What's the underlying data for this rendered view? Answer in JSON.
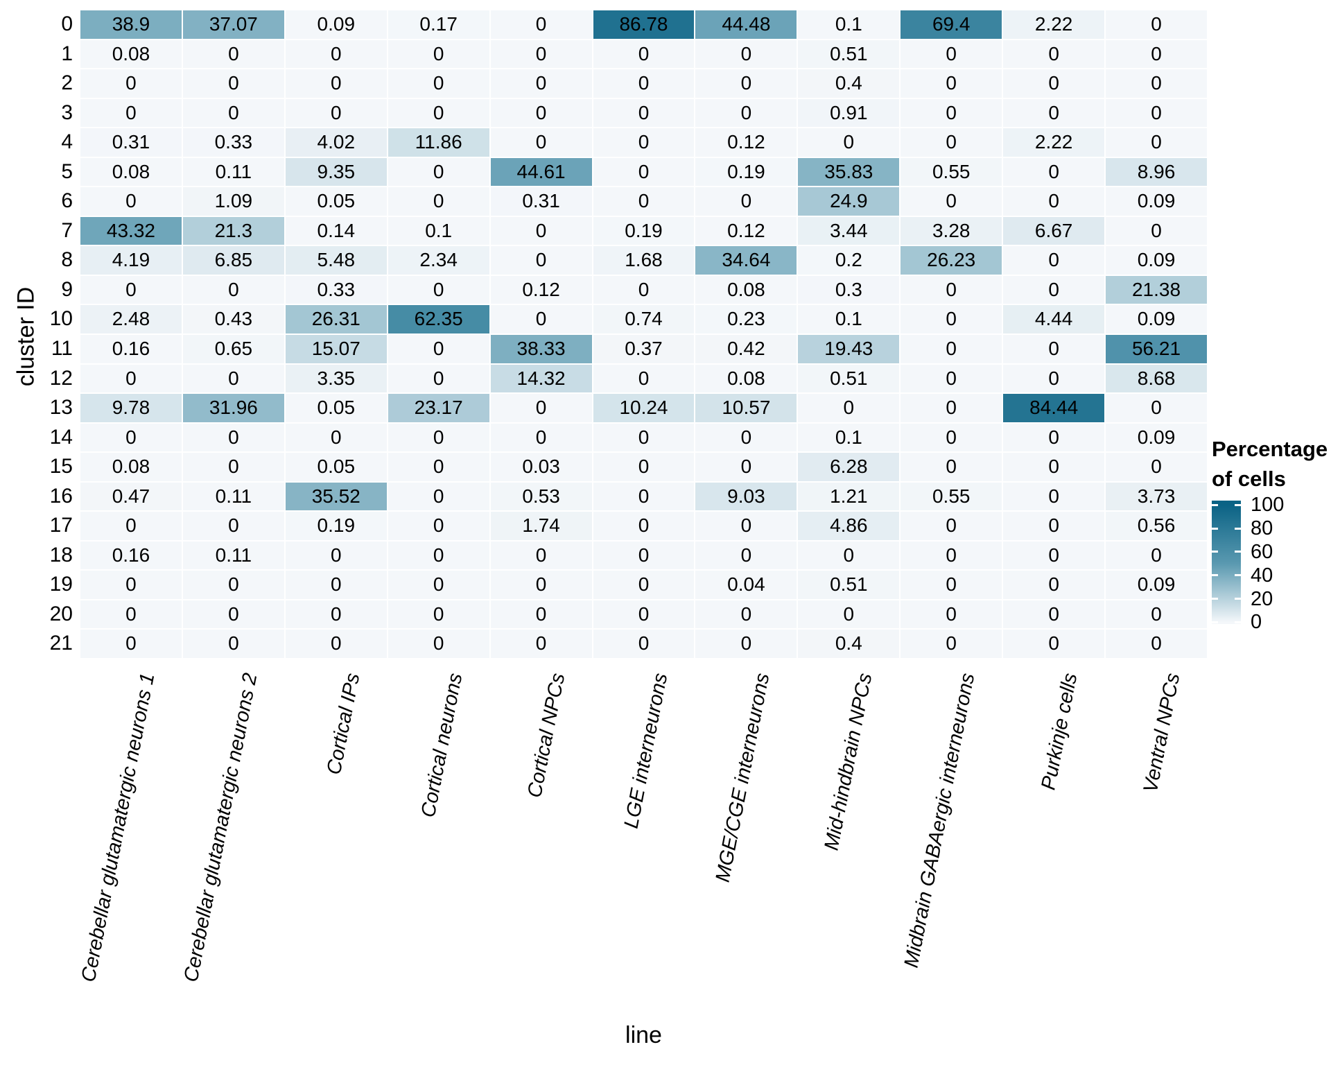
{
  "figure": {
    "x_axis_title": "line",
    "y_axis_title": "cluster ID"
  },
  "legend": {
    "title": "Percentage of cells",
    "title_line1": "Percentage",
    "title_line2": "of cells",
    "ticks": [
      "100",
      "80",
      "60",
      "40",
      "20",
      "0"
    ]
  },
  "chart_data": {
    "type": "heatmap",
    "title": "",
    "xlabel": "line",
    "ylabel": "cluster ID",
    "legend_title": "Percentage of cells",
    "colorscale": {
      "min": 0,
      "max": 100,
      "min_color": "#f4f7fa",
      "mid_color": "#5a99b0",
      "max_color": "#0b6385"
    },
    "categories": [
      "Cerebellar glutamatergic neurons 1",
      "Cerebellar glutamatergic neurons 2",
      "Cortical IPs",
      "Cortical neurons",
      "Cortical NPCs",
      "LGE interneurons",
      "MGE/CGE interneurons",
      "Mid-hindbrain NPCs",
      "Midbrain GABAergic interneurons",
      "Purkinje cells",
      "Ventral NPCs"
    ],
    "rows": [
      "0",
      "1",
      "2",
      "3",
      "4",
      "5",
      "6",
      "7",
      "8",
      "9",
      "10",
      "11",
      "12",
      "13",
      "14",
      "15",
      "16",
      "17",
      "18",
      "19",
      "20",
      "21"
    ],
    "values": [
      [
        38.9,
        37.07,
        0.09,
        0.17,
        0,
        86.78,
        44.48,
        0.1,
        69.4,
        2.22,
        0
      ],
      [
        0.08,
        0,
        0,
        0,
        0,
        0,
        0,
        0.51,
        0,
        0,
        0
      ],
      [
        0,
        0,
        0,
        0,
        0,
        0,
        0,
        0.4,
        0,
        0,
        0
      ],
      [
        0,
        0,
        0,
        0,
        0,
        0,
        0,
        0.91,
        0,
        0,
        0
      ],
      [
        0.31,
        0.33,
        4.02,
        11.86,
        0,
        0,
        0.12,
        0,
        0,
        2.22,
        0
      ],
      [
        0.08,
        0.11,
        9.35,
        0,
        44.61,
        0,
        0.19,
        35.83,
        0.55,
        0,
        8.96
      ],
      [
        0,
        1.09,
        0.05,
        0,
        0.31,
        0,
        0,
        24.9,
        0,
        0,
        0.09
      ],
      [
        43.32,
        21.3,
        0.14,
        0.1,
        0,
        0.19,
        0.12,
        3.44,
        3.28,
        6.67,
        0
      ],
      [
        4.19,
        6.85,
        5.48,
        2.34,
        0,
        1.68,
        34.64,
        0.2,
        26.23,
        0,
        0.09
      ],
      [
        0,
        0,
        0.33,
        0,
        0.12,
        0,
        0.08,
        0.3,
        0,
        0,
        21.38
      ],
      [
        2.48,
        0.43,
        26.31,
        62.35,
        0,
        0.74,
        0.23,
        0.1,
        0,
        4.44,
        0.09
      ],
      [
        0.16,
        0.65,
        15.07,
        0,
        38.33,
        0.37,
        0.42,
        19.43,
        0,
        0,
        56.21
      ],
      [
        0,
        0,
        3.35,
        0,
        14.32,
        0,
        0.08,
        0.51,
        0,
        0,
        8.68
      ],
      [
        9.78,
        31.96,
        0.05,
        23.17,
        0,
        10.24,
        10.57,
        0,
        0,
        84.44,
        0
      ],
      [
        0,
        0,
        0,
        0,
        0,
        0,
        0,
        0.1,
        0,
        0,
        0.09
      ],
      [
        0.08,
        0,
        0.05,
        0,
        0.03,
        0,
        0,
        6.28,
        0,
        0,
        0
      ],
      [
        0.47,
        0.11,
        35.52,
        0,
        0.53,
        0,
        9.03,
        1.21,
        0.55,
        0,
        3.73
      ],
      [
        0,
        0,
        0.19,
        0,
        1.74,
        0,
        0,
        4.86,
        0,
        0,
        0.56
      ],
      [
        0.16,
        0.11,
        0,
        0,
        0,
        0,
        0,
        0,
        0,
        0,
        0
      ],
      [
        0,
        0,
        0,
        0,
        0,
        0,
        0.04,
        0.51,
        0,
        0,
        0.09
      ],
      [
        0,
        0,
        0,
        0,
        0,
        0,
        0,
        0,
        0,
        0,
        0
      ],
      [
        0,
        0,
        0,
        0,
        0,
        0,
        0,
        0.4,
        0,
        0,
        0
      ]
    ]
  }
}
